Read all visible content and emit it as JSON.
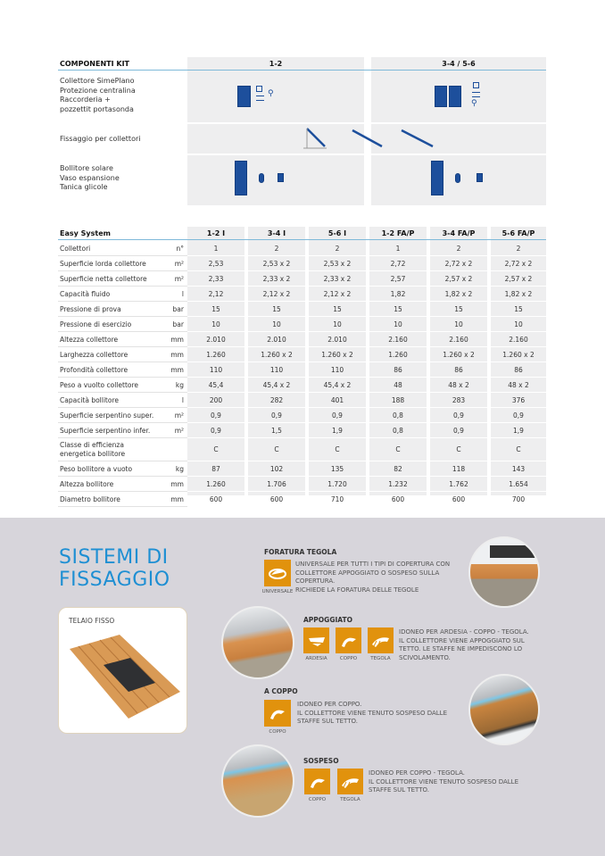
{
  "kit_table": {
    "header": "COMPONENTI KIT",
    "columns": [
      "1-2",
      "3-4 / 5-6"
    ],
    "rows": [
      {
        "label": [
          "Collettore SimePlano",
          "Protezione centralina",
          "Raccorderia +",
          "pozzettit portasonda"
        ]
      },
      {
        "label": [
          "Fissaggio per collettori"
        ]
      },
      {
        "label": [
          "Bollitore solare",
          "Vaso espansione",
          "Tanica glicole"
        ]
      }
    ],
    "icons": [
      "solar-panel",
      "control-unit",
      "fittings",
      "mounting-bracket",
      "rail",
      "boiler",
      "expansion-vessel",
      "glycol-tank"
    ],
    "icon_color": "#1d4f9c"
  },
  "spec_table": {
    "header": "Easy System",
    "columns": [
      "1-2 I",
      "3-4 I",
      "5-6 I",
      "1-2 FA/P",
      "3-4 FA/P",
      "5-6 FA/P"
    ],
    "rows": [
      {
        "label": "Collettori",
        "unit": "n°",
        "values": [
          "1",
          "2",
          "2",
          "1",
          "2",
          "2"
        ]
      },
      {
        "label": "Superficie lorda collettore",
        "unit": "m²",
        "values": [
          "2,53",
          "2,53 x 2",
          "2,53 x 2",
          "2,72",
          "2,72 x 2",
          "2,72 x 2"
        ]
      },
      {
        "label": "Superficie netta collettore",
        "unit": "m²",
        "values": [
          "2,33",
          "2,33 x 2",
          "2,33 x 2",
          "2,57",
          "2,57 x 2",
          "2,57 x 2"
        ]
      },
      {
        "label": "Capacità fluido",
        "unit": "l",
        "values": [
          "2,12",
          "2,12 x 2",
          "2,12 x 2",
          "1,82",
          "1,82 x 2",
          "1,82 x 2"
        ]
      },
      {
        "label": "Pressione di prova",
        "unit": "bar",
        "values": [
          "15",
          "15",
          "15",
          "15",
          "15",
          "15"
        ]
      },
      {
        "label": "Pressione di esercizio",
        "unit": "bar",
        "values": [
          "10",
          "10",
          "10",
          "10",
          "10",
          "10"
        ]
      },
      {
        "label": "Altezza collettore",
        "unit": "mm",
        "values": [
          "2.010",
          "2.010",
          "2.010",
          "2.160",
          "2.160",
          "2.160"
        ]
      },
      {
        "label": "Larghezza collettore",
        "unit": "mm",
        "values": [
          "1.260",
          "1.260 x 2",
          "1.260 x 2",
          "1.260",
          "1.260 x 2",
          "1.260 x 2"
        ]
      },
      {
        "label": "Profondità collettore",
        "unit": "mm",
        "values": [
          "110",
          "110",
          "110",
          "86",
          "86",
          "86"
        ]
      },
      {
        "label": "Peso a vuolto collettore",
        "unit": "kg",
        "values": [
          "45,4",
          "45,4 x 2",
          "45,4 x 2",
          "48",
          "48 x 2",
          "48 x 2"
        ]
      },
      {
        "label": "Capacità bollitore",
        "unit": "l",
        "values": [
          "200",
          "282",
          "401",
          "188",
          "283",
          "376"
        ]
      },
      {
        "label": "Superficie serpentino super.",
        "unit": "m²",
        "values": [
          "0,9",
          "0,9",
          "0,9",
          "0,8",
          "0,9",
          "0,9"
        ]
      },
      {
        "label": "Superficie serpentino infer.",
        "unit": "m²",
        "values": [
          "0,9",
          "1,5",
          "1,9",
          "0,8",
          "0,9",
          "1,9"
        ]
      },
      {
        "label": "Classe di efficienza energetica bollitore",
        "unit": "",
        "values": [
          "C",
          "C",
          "C",
          "C",
          "C",
          "C"
        ]
      },
      {
        "label": "Peso bollitore a vuoto",
        "unit": "kg",
        "values": [
          "87",
          "102",
          "135",
          "82",
          "118",
          "143"
        ]
      },
      {
        "label": "Altezza bollitore",
        "unit": "mm",
        "values": [
          "1.260",
          "1.706",
          "1.720",
          "1.232",
          "1.762",
          "1.654"
        ]
      },
      {
        "label": "Diametro bollitore",
        "unit": "mm",
        "values": [
          "600",
          "600",
          "710",
          "600",
          "600",
          "700"
        ]
      }
    ]
  },
  "fixing": {
    "title_line1": "SISTEMI DI",
    "title_line2": "FISSAGGIO",
    "title_color": "#1e8fd3",
    "accent_color": "#e1920d",
    "telaio": "TELAIO FISSO",
    "foratura": {
      "heading": "FORATURA TEGOLA",
      "icon_label": "UNIVERSALE",
      "text": [
        "UNIVERSALE PER TUTTI I TIPI DI COPERTURA CON",
        "COLLETTORE APPOGGIATO O SOSPESO SULLA",
        "COPERTURA.",
        "RICHIEDE LA FORATURA DELLE TEGOLE"
      ]
    },
    "appoggiato": {
      "heading": "APPOGGIATO",
      "icon_labels": [
        "ARDESIA",
        "COPPO",
        "TEGOLA"
      ],
      "text": [
        "IDONEO PER ARDESIA - COPPO - TEGOLA.",
        "IL COLLETTORE VIENE APPOGGIATO SUL",
        "TETTO. LE STAFFE NE IMPEDISCONO LO",
        "SCIVOLAMENTO."
      ]
    },
    "acoppo": {
      "heading": "A COPPO",
      "icon_labels": [
        "COPPO"
      ],
      "text": [
        "IDONEO PER COPPO.",
        "IL COLLETTORE VIENE TENUTO SOSPESO DALLE",
        "STAFFE SUL TETTO."
      ]
    },
    "sospeso": {
      "heading": "SOSPESO",
      "icon_labels": [
        "COPPO",
        "TEGOLA"
      ],
      "text": [
        "IDONEO PER COPPO - TEGOLA.",
        "IL COLLETTORE VIENE TENUTO SOSPESO DALLE",
        "STAFFE SUL TETTO."
      ]
    }
  }
}
